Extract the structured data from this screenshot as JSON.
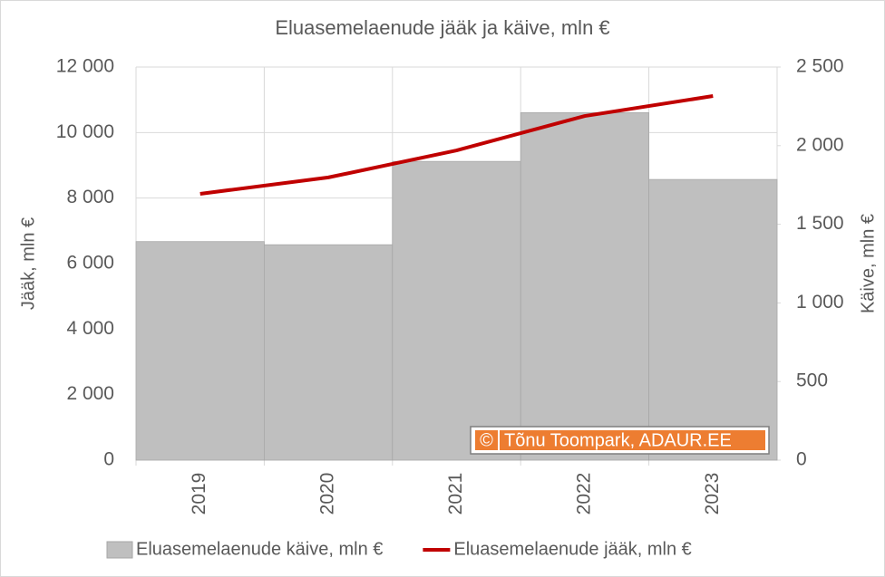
{
  "chart_data": {
    "type": "combo",
    "title": "Eluasemelaenude jääk ja käive, mln €",
    "y_label": "Jääk, mln €",
    "y2_label": "Käive, mln €",
    "categories": [
      "2019",
      "2020",
      "2021",
      "2022",
      "2023"
    ],
    "series": [
      {
        "name": "Eluasemelaenude käive, mln €",
        "type": "bar",
        "axis": "y2",
        "color": "#bfbfbf",
        "values": [
          1390,
          1370,
          1900,
          2210,
          1785
        ]
      },
      {
        "name": "Eluasemelaenude jääk, mln €",
        "type": "line",
        "axis": "y",
        "color": "#c00000",
        "values": [
          8130,
          8630,
          9455,
          10505,
          11115
        ]
      }
    ],
    "ylim": [
      0,
      12000
    ],
    "yticks": [
      0,
      {
        "value": 2000,
        "label": "2 000"
      },
      {
        "value": 4000,
        "label": "4 000"
      },
      {
        "value": 6000,
        "label": "6 000"
      },
      {
        "value": 8000,
        "label": "8 000"
      },
      {
        "value": 10000,
        "label": "10 000"
      },
      {
        "value": 12000,
        "label": "12 000"
      }
    ],
    "y2lim": [
      0,
      2500
    ],
    "y2ticks": [
      0,
      500,
      {
        "value": 1000,
        "label": "1 000"
      },
      {
        "value": 1500,
        "label": "1 500"
      },
      {
        "value": 2000,
        "label": "2 000"
      },
      {
        "value": 2500,
        "label": "2 500"
      }
    ],
    "grid": true,
    "legend": "bottom",
    "watermark": {
      "symbol": "©",
      "text": "Tõnu Toompark, ADAUR.EE"
    }
  }
}
